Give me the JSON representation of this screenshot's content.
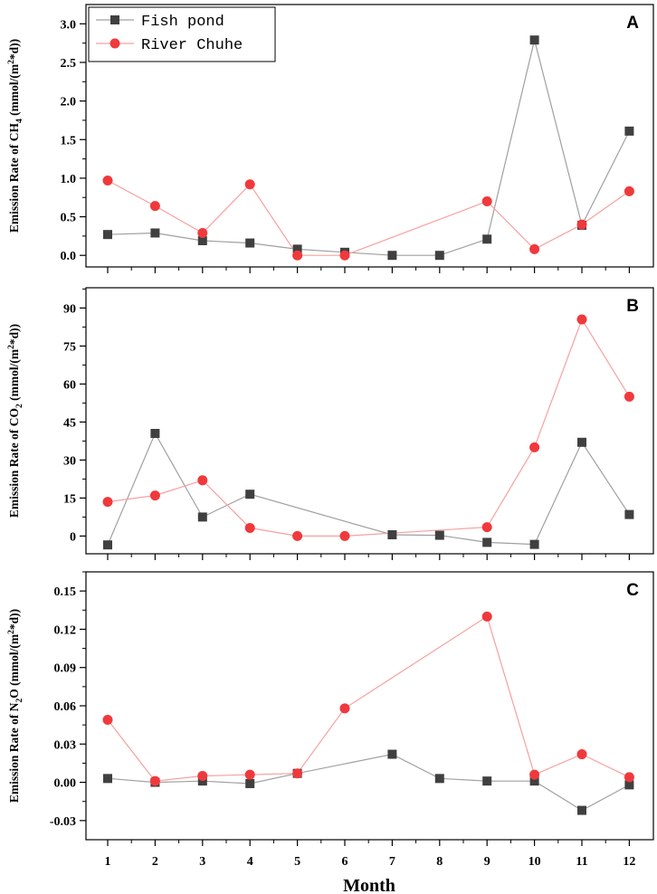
{
  "chart_data": {
    "type": "line",
    "xlabel": "Month",
    "categories": [
      "1",
      "2",
      "3",
      "4",
      "5",
      "6",
      "7",
      "8",
      "9",
      "10",
      "11",
      "12"
    ],
    "legend": {
      "position": "top-left",
      "entries": [
        {
          "name": "Fish pond",
          "marker": "square",
          "color": "#404040",
          "line_color": "#a0a0a0"
        },
        {
          "name": "River Chuhe",
          "marker": "circle",
          "color": "#f0393c",
          "line_color": "#f7a0a0"
        }
      ]
    },
    "panels": [
      {
        "letter": "A",
        "ylabel_parts": [
          "Emission Rate of CH",
          "4",
          "  (mmol/(m",
          "2",
          "*d))"
        ],
        "ylim": [
          -0.15,
          3.25
        ],
        "yticks": [
          0.0,
          0.5,
          1.0,
          1.5,
          2.0,
          2.5,
          3.0
        ],
        "ytick_labels": [
          "0.0",
          "0.5",
          "1.0",
          "1.5",
          "2.0",
          "2.5",
          "3.0"
        ],
        "series": [
          {
            "name": "Fish pond",
            "values": [
              0.27,
              0.29,
              0.19,
              0.16,
              0.08,
              0.04,
              0.0,
              0.0,
              0.21,
              2.79,
              0.39,
              1.61
            ]
          },
          {
            "name": "River Chuhe",
            "values": [
              0.97,
              0.64,
              0.29,
              0.92,
              0.0,
              0.0,
              null,
              null,
              0.7,
              0.08,
              0.4,
              0.83
            ]
          }
        ]
      },
      {
        "letter": "B",
        "ylabel_parts": [
          "Emission Rate of CO",
          "2",
          "  (mmol/(m",
          "2",
          "*d))"
        ],
        "ylim": [
          -7,
          98
        ],
        "yticks": [
          0,
          15,
          30,
          45,
          60,
          75,
          90
        ],
        "ytick_labels": [
          "0",
          "15",
          "30",
          "45",
          "60",
          "75",
          "90"
        ],
        "series": [
          {
            "name": "Fish pond",
            "values": [
              -3.5,
              40.5,
              7.5,
              16.5,
              null,
              null,
              0.5,
              0.3,
              -2.5,
              -3.3,
              37.0,
              8.5
            ]
          },
          {
            "name": "River Chuhe",
            "values": [
              13.5,
              16.0,
              22.0,
              3.2,
              0.0,
              0.0,
              null,
              null,
              3.5,
              35.0,
              85.5,
              55.0
            ]
          }
        ]
      },
      {
        "letter": "C",
        "ylabel_parts": [
          "Emission Rate of N",
          "2",
          "O  (mmol/(m",
          "2",
          "*d))"
        ],
        "ylim": [
          -0.045,
          0.165
        ],
        "yticks": [
          -0.03,
          0.0,
          0.03,
          0.06,
          0.09,
          0.12,
          0.15
        ],
        "ytick_labels": [
          "-0.03",
          "0.00",
          "0.03",
          "0.06",
          "0.09",
          "0.12",
          "0.15"
        ],
        "series": [
          {
            "name": "Fish pond",
            "values": [
              0.003,
              0.0,
              0.001,
              -0.001,
              0.007,
              null,
              0.022,
              0.003,
              0.001,
              0.001,
              -0.022,
              -0.002
            ]
          },
          {
            "name": "River Chuhe",
            "values": [
              0.049,
              0.001,
              0.005,
              0.006,
              0.007,
              0.058,
              null,
              null,
              0.13,
              0.006,
              0.022,
              0.004
            ]
          }
        ]
      }
    ]
  }
}
